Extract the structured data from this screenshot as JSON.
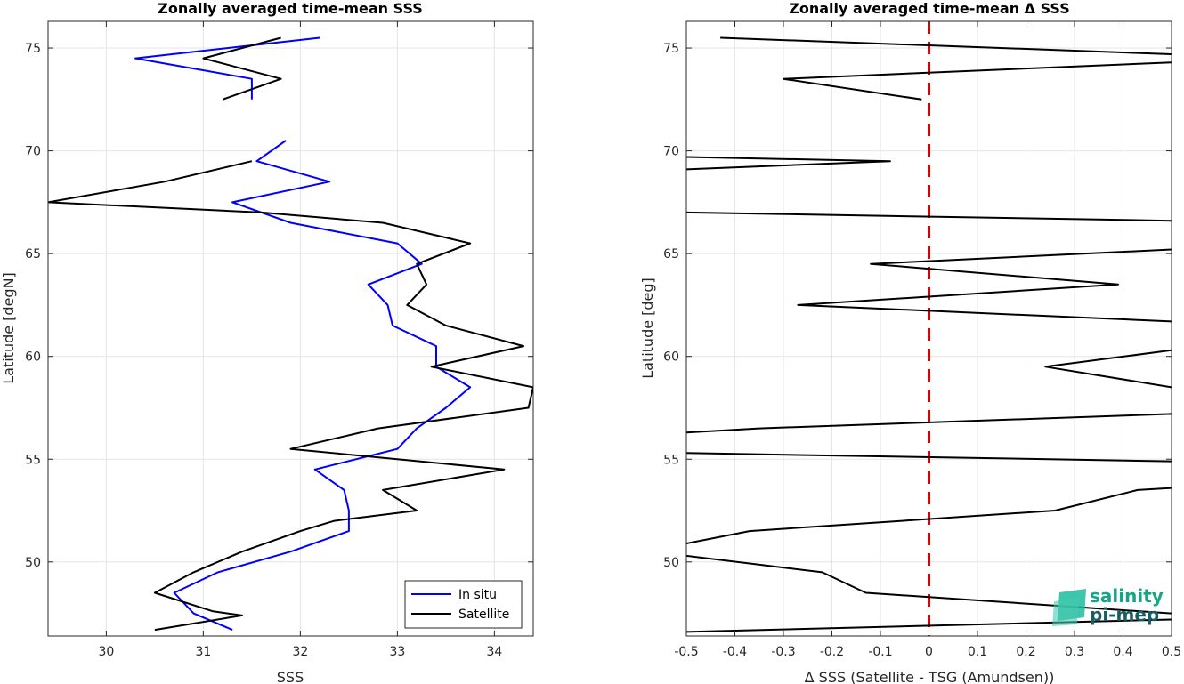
{
  "chart_data": [
    {
      "type": "line",
      "title": "Zonally averaged time-mean SSS",
      "xlabel": "SSS",
      "ylabel": "Latitude [degN]",
      "xlim": [
        29.4,
        34.4
      ],
      "ylim": [
        46.4,
        76.3
      ],
      "xticks": [
        30,
        31,
        32,
        33,
        34
      ],
      "yticks": [
        50,
        55,
        60,
        65,
        70,
        75
      ],
      "grid": true,
      "legend_position": "bottom-right",
      "series": [
        {
          "name": "In situ",
          "color": "#0000ff",
          "segments": [
            [
              [
                32.2,
                75.5
              ],
              [
                30.3,
                74.5
              ],
              [
                31.5,
                73.5
              ],
              [
                31.5,
                72.5
              ]
            ],
            [
              [
                31.85,
                70.5
              ],
              [
                31.55,
                69.5
              ],
              [
                32.3,
                68.5
              ],
              [
                31.3,
                67.5
              ],
              [
                31.9,
                66.5
              ],
              [
                33.0,
                65.5
              ],
              [
                33.25,
                64.5
              ],
              [
                32.7,
                63.5
              ],
              [
                32.9,
                62.5
              ],
              [
                32.95,
                61.5
              ],
              [
                33.4,
                60.5
              ],
              [
                33.4,
                59.5
              ],
              [
                33.75,
                58.5
              ],
              [
                33.5,
                57.5
              ],
              [
                33.2,
                56.5
              ],
              [
                33.0,
                55.5
              ],
              [
                32.15,
                54.5
              ],
              [
                32.45,
                53.5
              ],
              [
                32.5,
                52.5
              ],
              [
                32.5,
                51.5
              ],
              [
                31.9,
                50.5
              ],
              [
                31.15,
                49.5
              ],
              [
                30.7,
                48.5
              ],
              [
                30.9,
                47.5
              ],
              [
                31.3,
                46.7
              ]
            ]
          ]
        },
        {
          "name": "Satellite",
          "color": "#000000",
          "segments": [
            [
              [
                31.8,
                75.5
              ],
              [
                31.0,
                74.5
              ],
              [
                31.8,
                73.5
              ],
              [
                31.2,
                72.5
              ]
            ],
            [
              [
                31.5,
                69.5
              ],
              [
                30.6,
                68.5
              ],
              [
                29.4,
                67.5
              ],
              [
                31.6,
                67.0
              ],
              [
                32.85,
                66.5
              ],
              [
                33.75,
                65.5
              ],
              [
                33.2,
                64.5
              ],
              [
                33.3,
                63.5
              ],
              [
                33.1,
                62.5
              ],
              [
                33.5,
                61.5
              ],
              [
                34.3,
                60.5
              ],
              [
                33.35,
                59.5
              ],
              [
                34.4,
                58.5
              ],
              [
                34.35,
                57.5
              ],
              [
                32.8,
                56.5
              ],
              [
                31.9,
                55.5
              ],
              [
                34.1,
                54.5
              ],
              [
                32.85,
                53.5
              ],
              [
                33.2,
                52.5
              ],
              [
                32.35,
                52.0
              ],
              [
                32.0,
                51.5
              ],
              [
                31.4,
                50.5
              ],
              [
                30.9,
                49.5
              ],
              [
                30.5,
                48.5
              ],
              [
                31.1,
                47.6
              ],
              [
                31.4,
                47.4
              ],
              [
                30.5,
                46.7
              ]
            ]
          ]
        }
      ]
    },
    {
      "type": "line",
      "title": "Zonally averaged time-mean Δ SSS",
      "xlabel": "Δ SSS (Satellite - TSG (Amundsen))",
      "ylabel": "Latitude [deg]",
      "xlim": [
        -0.5,
        0.5
      ],
      "ylim": [
        46.4,
        76.3
      ],
      "xticks": [
        -0.5,
        -0.4,
        -0.3,
        -0.2,
        -0.1,
        0,
        0.1,
        0.2,
        0.3,
        0.4,
        0.5
      ],
      "xtick_labels": [
        "-0.5",
        "-0.4",
        "-0.3",
        "-0.2",
        "-0.1",
        "0",
        "0.1",
        "0.2",
        "0.3",
        "0.4",
        "0.5"
      ],
      "yticks": [
        50,
        55,
        60,
        65,
        70,
        75
      ],
      "grid": true,
      "reference_line": {
        "x": 0,
        "color": "#dd0000",
        "style": "dashed"
      },
      "series": [
        {
          "name": "",
          "color": "#000000",
          "segments": [
            [
              [
                -0.43,
                75.5
              ],
              [
                0.5,
                74.7
              ]
            ],
            [
              [
                0.5,
                74.3
              ],
              [
                -0.3,
                73.5
              ],
              [
                -0.015,
                72.5
              ]
            ],
            [
              [
                -0.5,
                69.7
              ],
              [
                -0.08,
                69.5
              ],
              [
                -0.5,
                69.1
              ]
            ],
            [
              [
                -0.5,
                67.0
              ],
              [
                0.5,
                66.6
              ]
            ],
            [
              [
                0.5,
                65.2
              ],
              [
                -0.12,
                64.5
              ],
              [
                0.39,
                63.5
              ],
              [
                -0.27,
                62.5
              ],
              [
                0.5,
                61.7
              ]
            ],
            [
              [
                0.5,
                60.3
              ],
              [
                0.24,
                59.5
              ],
              [
                0.5,
                58.5
              ]
            ],
            [
              [
                0.5,
                57.2
              ],
              [
                -0.35,
                56.5
              ],
              [
                -0.5,
                56.3
              ]
            ],
            [
              [
                -0.5,
                55.3
              ],
              [
                0.5,
                54.9
              ]
            ],
            [
              [
                0.5,
                53.6
              ],
              [
                0.43,
                53.5
              ],
              [
                0.26,
                52.5
              ],
              [
                -0.37,
                51.5
              ],
              [
                -0.5,
                50.9
              ]
            ],
            [
              [
                -0.5,
                50.3
              ],
              [
                -0.22,
                49.5
              ],
              [
                -0.13,
                48.5
              ],
              [
                0.5,
                47.5
              ]
            ],
            [
              [
                0.5,
                47.2
              ],
              [
                -0.5,
                46.6
              ]
            ]
          ]
        }
      ]
    }
  ],
  "logo": {
    "text_line1": "salinity",
    "text_line2": "pi-mep",
    "color1": "#17a589",
    "color2": "#1a5e63"
  }
}
